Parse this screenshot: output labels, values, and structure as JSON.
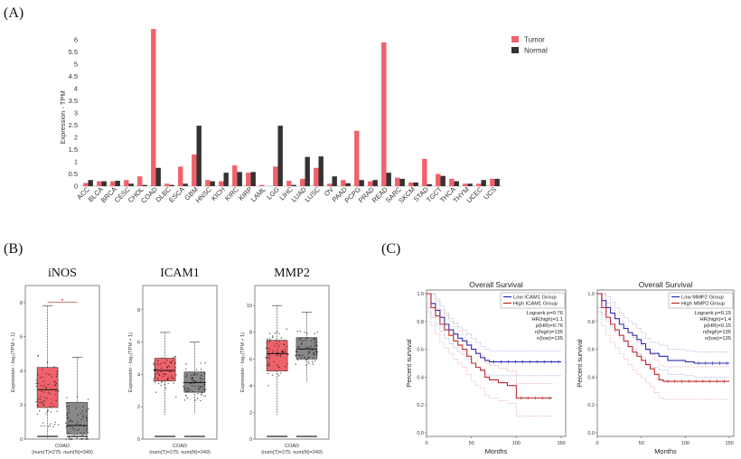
{
  "panels": {
    "a": "(A)",
    "b": "(B)",
    "c": "(C)"
  },
  "chart_data": [
    {
      "type": "bar",
      "panel": "(A)",
      "ylabel": "Expression - TPM",
      "ylim": [
        0,
        6.6
      ],
      "yticks": [
        "0",
        "0.5",
        "1",
        "1.5",
        "2",
        "2.5",
        "3",
        "3.5",
        "4",
        "4.5",
        "5",
        "5.5",
        "6"
      ],
      "legend": {
        "position": "top-right",
        "entries": [
          "Tumor",
          "Normal"
        ],
        "colors": [
          "#f0626a",
          "#333333"
        ]
      },
      "categories": [
        "ACC",
        "BLCA",
        "BRCA",
        "CESC",
        "CHOL",
        "COAD",
        "DLBC",
        "ESCA",
        "GBM",
        "HNSC",
        "KICH",
        "KIRC",
        "KIRP",
        "LAML",
        "LGG",
        "LIHC",
        "LUAD",
        "LUSC",
        "OV",
        "PAAD",
        "PCPG",
        "PRAD",
        "READ",
        "SARC",
        "SKCM",
        "STAD",
        "TGCT",
        "THCA",
        "THYM",
        "UCEC",
        "UCS"
      ],
      "series": [
        {
          "name": "Tumor",
          "color": "#f0626a",
          "values": [
            0.13,
            0.2,
            0.2,
            0.25,
            0.4,
            6.45,
            0.1,
            0.8,
            1.3,
            0.25,
            0.2,
            0.85,
            0.55,
            0.05,
            0.8,
            0.22,
            0.3,
            0.75,
            0.1,
            0.25,
            2.27,
            0.2,
            5.9,
            0.35,
            0.15,
            1.12,
            0.5,
            0.3,
            0.1,
            0.1,
            0.3
          ]
        },
        {
          "name": "Normal",
          "color": "#333333",
          "values": [
            0.25,
            0.2,
            0.22,
            0.1,
            0.05,
            0.75,
            0.05,
            0.1,
            2.48,
            0.2,
            0.55,
            0.58,
            0.58,
            0,
            2.48,
            0.05,
            1.2,
            1.22,
            0.4,
            0.12,
            0.25,
            0.25,
            0.55,
            0.3,
            0.15,
            0.08,
            0.42,
            0.2,
            0.1,
            0.25,
            0.3
          ]
        }
      ]
    },
    {
      "type": "box",
      "panel": "(B)",
      "title": "iNOS",
      "ylabel": "Expression - log₂(TPM + 1)",
      "ylim": [
        0,
        9
      ],
      "yticks": [
        "0",
        "2",
        "4",
        "6",
        "8"
      ],
      "xlabel": "COAD",
      "xsublabel": "(num(T)=275; num(N)=349)",
      "significance": "*",
      "groups": [
        {
          "name": "Tumor",
          "color": "#f0626a",
          "q1": 1.85,
          "median": 2.9,
          "q3": 4.2,
          "wlo": 0,
          "whi": 7.8
        },
        {
          "name": "Normal",
          "color": "#888888",
          "q1": 0.3,
          "median": 0.8,
          "q3": 2.15,
          "wlo": 0,
          "whi": 4.8
        }
      ]
    },
    {
      "type": "box",
      "panel": "(B)",
      "title": "ICAM1",
      "ylabel": "Expression - log₂(TPM + 1)",
      "ylim": [
        0,
        9.5
      ],
      "yticks": [
        "0",
        "2",
        "4",
        "6",
        "8"
      ],
      "xlabel": "COAD",
      "xsublabel": "(num(T)=275; num(N)=349)",
      "groups": [
        {
          "name": "Tumor",
          "color": "#f0626a",
          "q1": 3.6,
          "median": 4.25,
          "q3": 5.0,
          "wlo": 1.5,
          "whi": 6.6
        },
        {
          "name": "Normal",
          "color": "#888888",
          "q1": 2.9,
          "median": 3.5,
          "q3": 4.15,
          "wlo": 1.6,
          "whi": 6.0
        }
      ]
    },
    {
      "type": "box",
      "panel": "(B)",
      "title": "MMP2",
      "ylabel": "Expression - log₂(TPM + 1)",
      "ylim": [
        0,
        11.5
      ],
      "yticks": [
        "0",
        "2",
        "4",
        "6",
        "8",
        "10"
      ],
      "xlabel": "COAD",
      "xsublabel": "(num(T)=275; num(N)=349)",
      "groups": [
        {
          "name": "Tumor",
          "color": "#f0626a",
          "q1": 5.1,
          "median": 6.4,
          "q3": 7.4,
          "wlo": 1.8,
          "whi": 10.0
        },
        {
          "name": "Normal",
          "color": "#888888",
          "q1": 6.0,
          "median": 6.75,
          "q3": 7.6,
          "wlo": 4.3,
          "whi": 9.5
        }
      ]
    },
    {
      "type": "line",
      "panel": "(C)",
      "title": "Overall Survival",
      "xlabel": "Months",
      "ylabel": "Percent survival",
      "xlim": [
        0,
        155
      ],
      "ylim": [
        0,
        1.0
      ],
      "xticks": [
        "0",
        "50",
        "100",
        "150"
      ],
      "yticks": [
        "0.0",
        "0.2",
        "0.4",
        "0.6",
        "0.8",
        "1.0"
      ],
      "stats": [
        "Logrank p=0.76",
        "HR(high)=1.1",
        "p(HR)=0.76",
        "n(high)=135",
        "n(low)=135"
      ],
      "series": [
        {
          "name": "Low ICAM1 Group",
          "color": "#2b2bb3",
          "x": [
            0,
            5,
            10,
            15,
            20,
            25,
            30,
            35,
            40,
            45,
            50,
            55,
            60,
            65,
            70,
            150
          ],
          "y": [
            1.0,
            0.93,
            0.88,
            0.83,
            0.78,
            0.74,
            0.71,
            0.68,
            0.66,
            0.63,
            0.6,
            0.57,
            0.54,
            0.52,
            0.51,
            0.51
          ]
        },
        {
          "name": "High ICAM1 Group",
          "color": "#c0282f",
          "x": [
            0,
            5,
            10,
            15,
            20,
            25,
            30,
            35,
            40,
            45,
            50,
            55,
            60,
            65,
            70,
            80,
            90,
            100,
            140
          ],
          "y": [
            1.0,
            0.9,
            0.84,
            0.78,
            0.74,
            0.7,
            0.66,
            0.63,
            0.6,
            0.55,
            0.5,
            0.47,
            0.45,
            0.4,
            0.38,
            0.36,
            0.34,
            0.25,
            0.25
          ]
        }
      ]
    },
    {
      "type": "line",
      "panel": "(C)",
      "title": "Overall Survival",
      "xlabel": "Months",
      "ylabel": "Percent survival",
      "xlim": [
        0,
        155
      ],
      "ylim": [
        0,
        1.0
      ],
      "xticks": [
        "0",
        "50",
        "100",
        "150"
      ],
      "yticks": [
        "0.0",
        "0.2",
        "0.4",
        "0.6",
        "0.8",
        "1.0"
      ],
      "stats": [
        "Logrank p=0.15",
        "HR(high)=1.4",
        "p(HR)=0.15",
        "n(high)=135",
        "n(low)=135"
      ],
      "series": [
        {
          "name": "Low MMP2 Group",
          "color": "#2b2bb3",
          "x": [
            0,
            5,
            10,
            15,
            20,
            25,
            30,
            35,
            40,
            45,
            50,
            55,
            60,
            70,
            80,
            100,
            110,
            150
          ],
          "y": [
            1.0,
            0.95,
            0.9,
            0.86,
            0.82,
            0.78,
            0.75,
            0.72,
            0.7,
            0.67,
            0.64,
            0.6,
            0.57,
            0.55,
            0.52,
            0.51,
            0.5,
            0.5
          ]
        },
        {
          "name": "High MMP2 Group",
          "color": "#c0282f",
          "x": [
            0,
            5,
            10,
            15,
            20,
            25,
            30,
            35,
            40,
            45,
            50,
            55,
            60,
            65,
            70,
            75,
            150
          ],
          "y": [
            1.0,
            0.9,
            0.83,
            0.78,
            0.74,
            0.7,
            0.66,
            0.62,
            0.58,
            0.55,
            0.52,
            0.49,
            0.46,
            0.42,
            0.38,
            0.37,
            0.37
          ]
        }
      ]
    }
  ]
}
